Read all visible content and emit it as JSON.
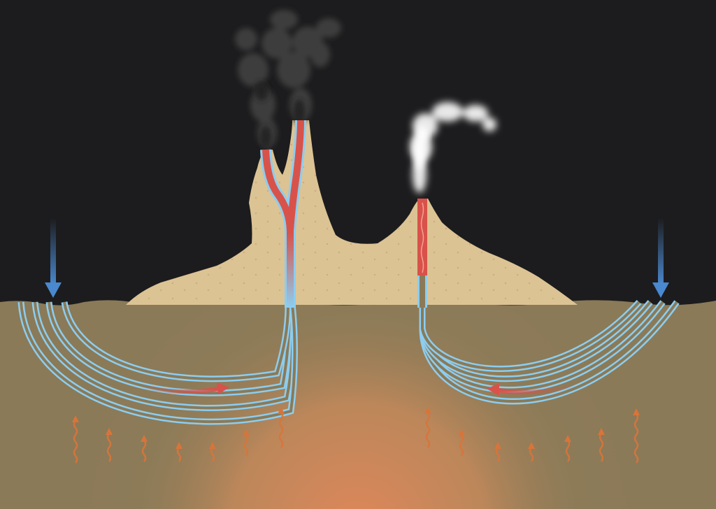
{
  "diagram": {
    "colors": {
      "sky": "#1c1c1e",
      "ground": "#8a7a58",
      "deposit": "#dcc394",
      "cold_water": "#8ccdf0",
      "hot_water": "#d8524a",
      "recharge_arrow": "#4a88cf",
      "heat_arrow": "#d8743a",
      "magma_glow": "#e0875a",
      "dark_smoke": "#404040",
      "white_steam": "#f4f4f4"
    },
    "icons": {
      "recharge": "arrow-down-icon",
      "flow": "curved-arrow-icon",
      "heat": "wavy-arrow-up-icon"
    },
    "features": {
      "left_vent": "dark-smoke-chimney",
      "right_vent": "white-steam-chimney"
    }
  }
}
